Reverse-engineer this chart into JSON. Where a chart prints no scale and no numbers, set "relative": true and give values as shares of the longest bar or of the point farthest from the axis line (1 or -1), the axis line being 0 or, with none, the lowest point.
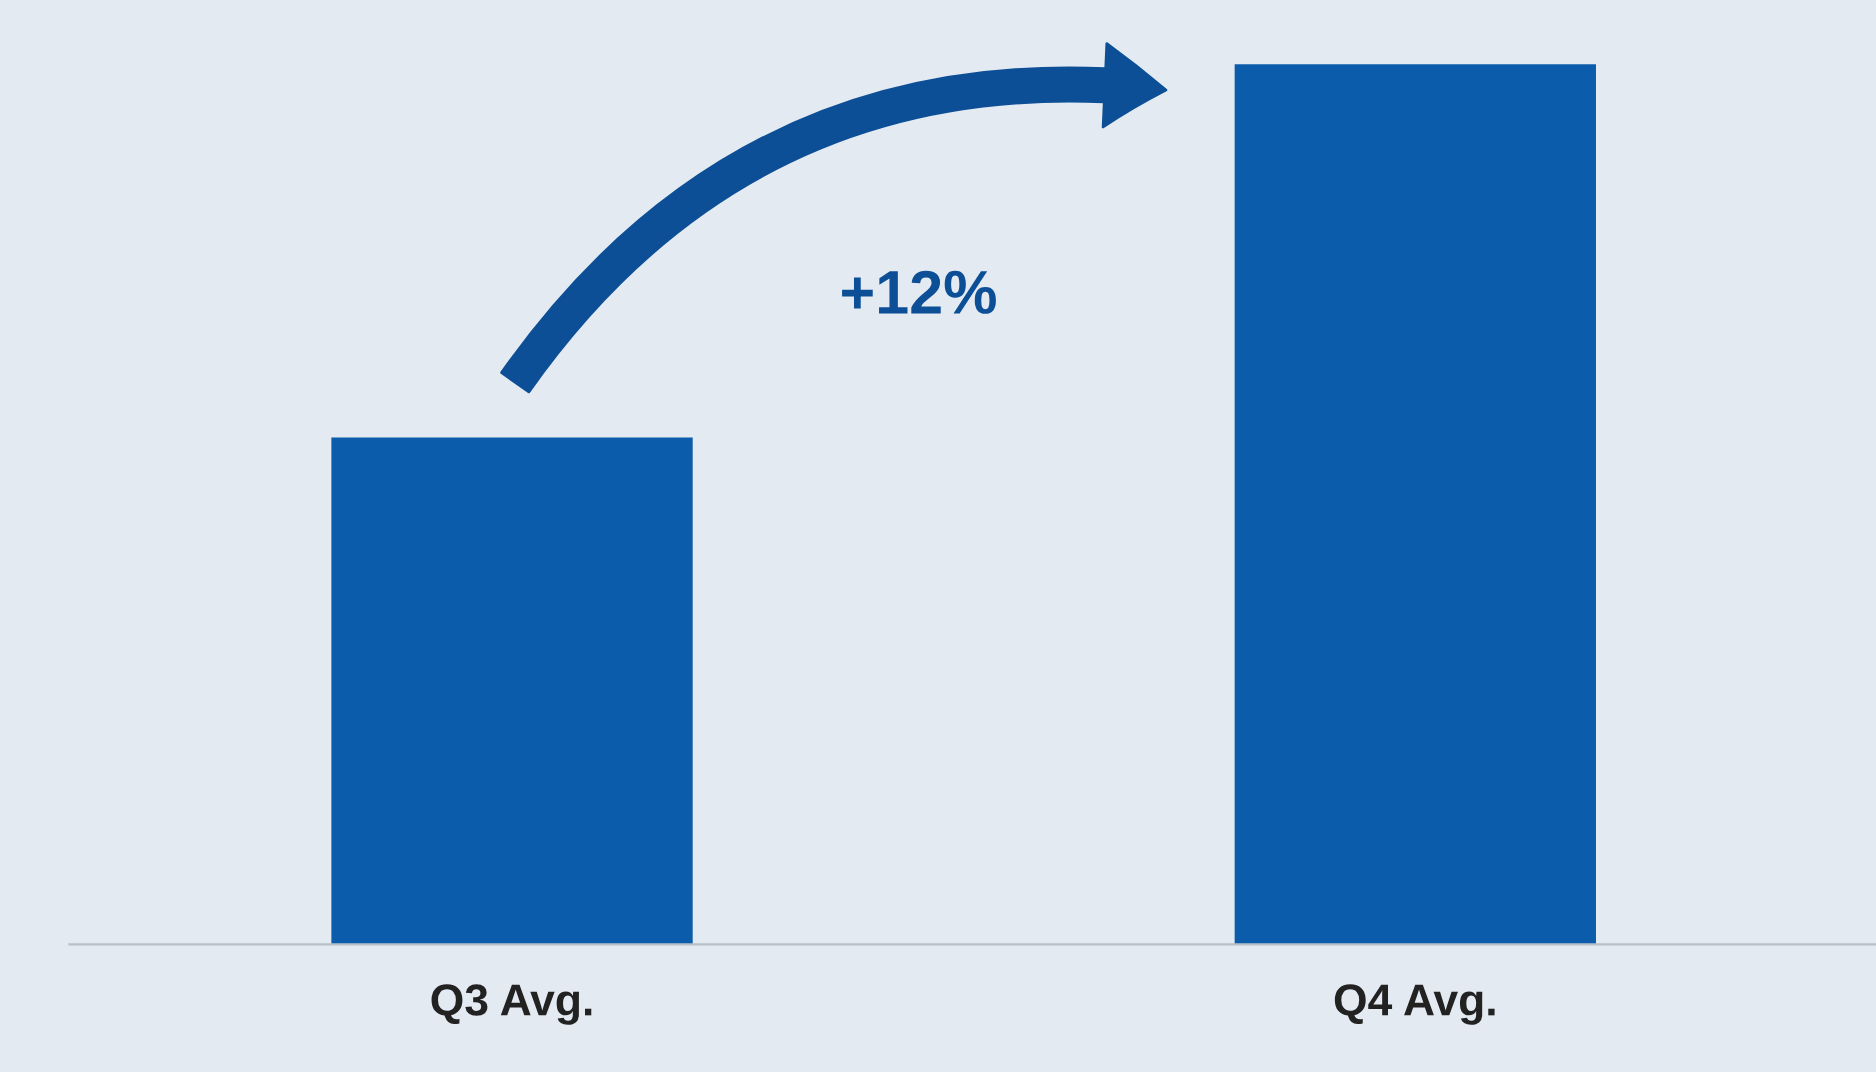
{
  "chart_data": {
    "type": "bar",
    "relative": true,
    "categories": [
      "Q3 Avg.",
      "Q4 Avg."
    ],
    "values": [
      0.576,
      1
    ],
    "color": "#0b5cab",
    "annotations": [
      "+12%"
    ],
    "grid": false,
    "legend": false
  }
}
